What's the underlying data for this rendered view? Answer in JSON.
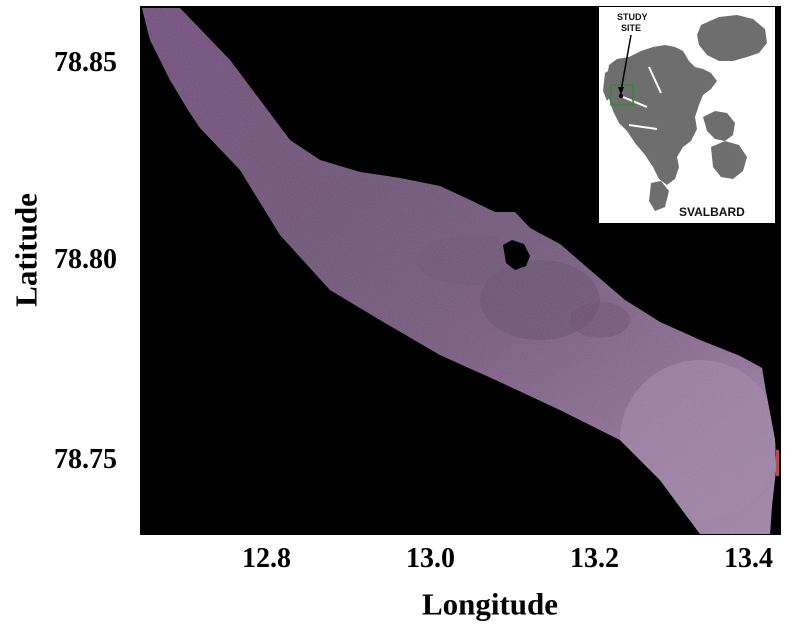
{
  "map": {
    "y_ticks": [
      "78.85",
      "78.80",
      "78.75"
    ],
    "x_ticks": [
      "12.8",
      "13.0",
      "13.2",
      "13.4"
    ],
    "x_axis_label": "Longitude",
    "y_axis_label": "Latitude",
    "background_color": "#000000",
    "image_colors": {
      "purple": "#7a4f82",
      "green": "#5a7a55",
      "light": "#ddd4de"
    }
  },
  "inset": {
    "study_site_label_line1": "STUDY",
    "study_site_label_line2": "SITE",
    "region_label": "SVALBARD",
    "land_color": "#6e6e6e",
    "marker_color": "#2e8b2e"
  }
}
